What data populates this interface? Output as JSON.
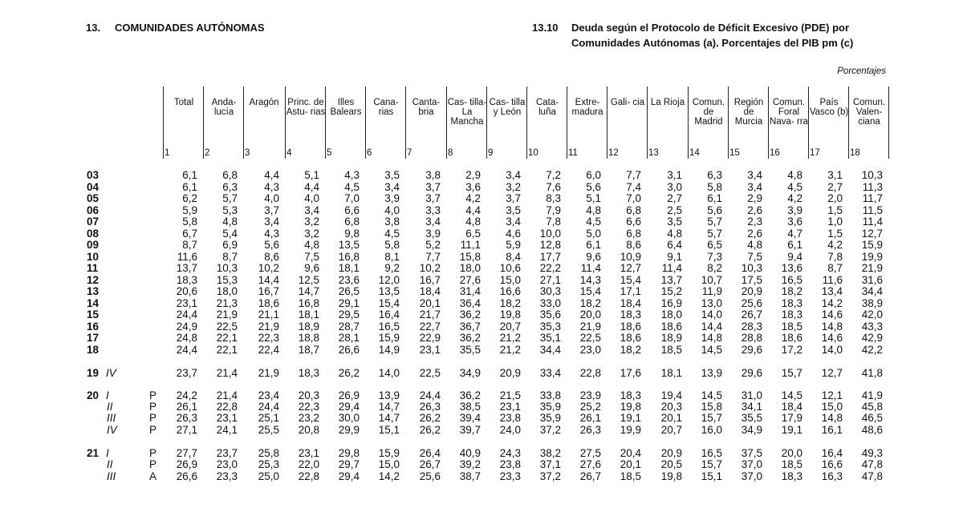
{
  "header": {
    "section_number": "13.",
    "section_title": "COMUNIDADES AUTÓNOMAS",
    "table_number": "13.10",
    "table_title_line1": "Deuda según el Protocolo de Déficit Excesivo (PDE) por",
    "table_title_line2": "Comunidades Autónomas (a). Porcentajes del PIB pm (c)",
    "units": "Porcentajes"
  },
  "columns": [
    {
      "label": "Total",
      "num": "1"
    },
    {
      "label": "Anda- lucía",
      "num": "2"
    },
    {
      "label": "Aragón",
      "num": "3"
    },
    {
      "label": "Princ. de Astu- rias",
      "num": "4"
    },
    {
      "label": "Illes Balears",
      "num": "5"
    },
    {
      "label": "Cana- rias",
      "num": "6"
    },
    {
      "label": "Canta- bria",
      "num": "7"
    },
    {
      "label": "Cas- tilla- La Mancha",
      "num": "8"
    },
    {
      "label": "Cas- tilla y León",
      "num": "9"
    },
    {
      "label": "Cata- luña",
      "num": "10"
    },
    {
      "label": "Extre- madura",
      "num": "11"
    },
    {
      "label": "Gali- cia",
      "num": "12"
    },
    {
      "label": "La Rioja",
      "num": "13"
    },
    {
      "label": "Comun. de Madrid",
      "num": "14"
    },
    {
      "label": "Región de Murcia",
      "num": "15"
    },
    {
      "label": "Comun. Foral Nava- rra",
      "num": "16"
    },
    {
      "label": "País Vasco (b)",
      "num": "17"
    },
    {
      "label": "Comun. Valen- ciana",
      "num": "18"
    }
  ],
  "rows": [
    {
      "year": "03",
      "q": "",
      "flag": "",
      "values": [
        "6,1",
        "6,8",
        "4,4",
        "5,1",
        "4,3",
        "3,5",
        "3,8",
        "2,9",
        "3,4",
        "7,2",
        "6,0",
        "7,7",
        "3,1",
        "6,3",
        "3,4",
        "4,8",
        "3,1",
        "10,3"
      ]
    },
    {
      "year": "04",
      "q": "",
      "flag": "",
      "values": [
        "6,1",
        "6,3",
        "4,3",
        "4,4",
        "4,5",
        "3,4",
        "3,7",
        "3,6",
        "3,2",
        "7,6",
        "5,6",
        "7,4",
        "3,0",
        "5,8",
        "3,4",
        "4,5",
        "2,7",
        "11,3"
      ]
    },
    {
      "year": "05",
      "q": "",
      "flag": "",
      "values": [
        "6,2",
        "5,7",
        "4,0",
        "4,0",
        "7,0",
        "3,9",
        "3,7",
        "4,2",
        "3,7",
        "8,3",
        "5,1",
        "7,0",
        "2,7",
        "6,1",
        "2,9",
        "4,2",
        "2,0",
        "11,7"
      ]
    },
    {
      "year": "06",
      "q": "",
      "flag": "",
      "values": [
        "5,9",
        "5,3",
        "3,7",
        "3,4",
        "6,6",
        "4,0",
        "3,3",
        "4,4",
        "3,5",
        "7,9",
        "4,8",
        "6,8",
        "2,5",
        "5,6",
        "2,6",
        "3,9",
        "1,5",
        "11,5"
      ]
    },
    {
      "year": "07",
      "q": "",
      "flag": "",
      "values": [
        "5,8",
        "4,8",
        "3,4",
        "3,2",
        "6,8",
        "3,8",
        "3,4",
        "4,8",
        "3,4",
        "7,8",
        "4,5",
        "6,6",
        "3,5",
        "5,7",
        "2,3",
        "3,6",
        "1,0",
        "11,4"
      ]
    },
    {
      "year": "08",
      "q": "",
      "flag": "",
      "values": [
        "6,7",
        "5,4",
        "4,3",
        "3,2",
        "9,8",
        "4,5",
        "3,9",
        "6,5",
        "4,6",
        "10,0",
        "5,0",
        "6,8",
        "4,8",
        "5,7",
        "2,6",
        "4,7",
        "1,5",
        "12,7"
      ]
    },
    {
      "year": "09",
      "q": "",
      "flag": "",
      "values": [
        "8,7",
        "6,9",
        "5,6",
        "4,8",
        "13,5",
        "5,8",
        "5,2",
        "11,1",
        "5,9",
        "12,8",
        "6,1",
        "8,6",
        "6,4",
        "6,5",
        "4,8",
        "6,1",
        "4,2",
        "15,9"
      ]
    },
    {
      "year": "10",
      "q": "",
      "flag": "",
      "values": [
        "11,6",
        "8,7",
        "8,6",
        "7,5",
        "16,8",
        "8,1",
        "7,7",
        "15,8",
        "8,4",
        "17,7",
        "9,6",
        "10,9",
        "9,1",
        "7,3",
        "7,5",
        "9,4",
        "7,8",
        "19,9"
      ]
    },
    {
      "year": "11",
      "q": "",
      "flag": "",
      "values": [
        "13,7",
        "10,3",
        "10,2",
        "9,6",
        "18,1",
        "9,2",
        "10,2",
        "18,0",
        "10,6",
        "22,2",
        "11,4",
        "12,7",
        "11,4",
        "8,2",
        "10,3",
        "13,6",
        "8,7",
        "21,9"
      ]
    },
    {
      "year": "12",
      "q": "",
      "flag": "",
      "values": [
        "18,3",
        "15,3",
        "14,4",
        "12,5",
        "23,6",
        "12,0",
        "16,7",
        "27,6",
        "15,0",
        "27,1",
        "14,3",
        "15,4",
        "13,7",
        "10,7",
        "17,5",
        "16,5",
        "11,6",
        "31,6"
      ]
    },
    {
      "year": "13",
      "q": "",
      "flag": "",
      "values": [
        "20,6",
        "18,0",
        "16,7",
        "14,7",
        "26,5",
        "13,5",
        "18,4",
        "31,4",
        "16,6",
        "30,3",
        "15,4",
        "17,1",
        "15,2",
        "11,9",
        "20,9",
        "18,2",
        "13,4",
        "34,4"
      ]
    },
    {
      "year": "14",
      "q": "",
      "flag": "",
      "values": [
        "23,1",
        "21,3",
        "18,6",
        "16,8",
        "29,1",
        "15,4",
        "20,1",
        "36,4",
        "18,2",
        "33,0",
        "18,2",
        "18,4",
        "16,9",
        "13,0",
        "25,6",
        "18,3",
        "14,2",
        "38,9"
      ]
    },
    {
      "year": "15",
      "q": "",
      "flag": "",
      "values": [
        "24,4",
        "21,9",
        "21,1",
        "18,1",
        "29,5",
        "16,4",
        "21,7",
        "36,2",
        "19,8",
        "35,6",
        "20,0",
        "18,3",
        "18,0",
        "14,0",
        "26,7",
        "18,3",
        "14,6",
        "42,0"
      ]
    },
    {
      "year": "16",
      "q": "",
      "flag": "",
      "values": [
        "24,9",
        "22,5",
        "21,9",
        "18,9",
        "28,7",
        "16,5",
        "22,7",
        "36,7",
        "20,7",
        "35,3",
        "21,9",
        "18,6",
        "18,6",
        "14,4",
        "28,3",
        "18,5",
        "14,8",
        "43,3"
      ]
    },
    {
      "year": "17",
      "q": "",
      "flag": "",
      "values": [
        "24,8",
        "22,1",
        "22,3",
        "18,8",
        "28,1",
        "15,9",
        "22,9",
        "36,2",
        "21,2",
        "35,1",
        "22,5",
        "18,6",
        "18,9",
        "14,8",
        "28,8",
        "18,6",
        "14,6",
        "42,9"
      ]
    },
    {
      "year": "18",
      "q": "",
      "flag": "",
      "values": [
        "24,4",
        "22,1",
        "22,4",
        "18,7",
        "26,6",
        "14,9",
        "23,1",
        "35,5",
        "21,2",
        "34,4",
        "23,0",
        "18,2",
        "18,5",
        "14,5",
        "29,6",
        "17,2",
        "14,0",
        "42,2"
      ]
    },
    {
      "year": "19",
      "q": "IV",
      "flag": "",
      "values": [
        "23,7",
        "21,4",
        "21,9",
        "18,3",
        "26,2",
        "14,0",
        "22,5",
        "34,9",
        "20,9",
        "33,4",
        "22,8",
        "17,6",
        "18,1",
        "13,9",
        "29,6",
        "15,7",
        "12,7",
        "41,8"
      ]
    },
    {
      "year": "20",
      "q": "I",
      "flag": "P",
      "values": [
        "24,2",
        "21,4",
        "23,4",
        "20,3",
        "26,9",
        "13,9",
        "24,4",
        "36,2",
        "21,5",
        "33,8",
        "23,9",
        "18,3",
        "19,4",
        "14,5",
        "31,0",
        "14,5",
        "12,1",
        "41,9"
      ]
    },
    {
      "year": "",
      "q": "II",
      "flag": "P",
      "values": [
        "26,1",
        "22,8",
        "24,4",
        "22,3",
        "29,4",
        "14,7",
        "26,3",
        "38,5",
        "23,1",
        "35,9",
        "25,2",
        "19,8",
        "20,3",
        "15,8",
        "34,1",
        "18,4",
        "15,0",
        "45,8"
      ]
    },
    {
      "year": "",
      "q": "III",
      "flag": "P",
      "values": [
        "26,3",
        "23,1",
        "25,1",
        "23,2",
        "30,0",
        "14,7",
        "26,2",
        "39,4",
        "23,8",
        "35,9",
        "26,1",
        "19,1",
        "20,1",
        "15,7",
        "35,5",
        "17,9",
        "14,8",
        "46,5"
      ]
    },
    {
      "year": "",
      "q": "IV",
      "flag": "P",
      "values": [
        "27,1",
        "24,1",
        "25,5",
        "20,8",
        "29,9",
        "15,1",
        "26,2",
        "39,7",
        "24,0",
        "37,2",
        "26,3",
        "19,9",
        "20,7",
        "16,0",
        "34,9",
        "19,1",
        "16,1",
        "48,6"
      ]
    },
    {
      "year": "21",
      "q": "I",
      "flag": "P",
      "values": [
        "27,7",
        "23,7",
        "25,8",
        "23,1",
        "29,8",
        "15,9",
        "26,4",
        "40,9",
        "24,3",
        "38,2",
        "27,5",
        "20,4",
        "20,9",
        "16,5",
        "37,5",
        "20,0",
        "16,4",
        "49,3"
      ]
    },
    {
      "year": "",
      "q": "II",
      "flag": "P",
      "values": [
        "26,9",
        "23,0",
        "25,3",
        "22,0",
        "29,7",
        "15,0",
        "26,7",
        "39,2",
        "23,8",
        "37,1",
        "27,6",
        "20,1",
        "20,5",
        "15,7",
        "37,0",
        "18,5",
        "16,6",
        "47,8"
      ]
    },
    {
      "year": "",
      "q": "III",
      "flag": "A",
      "values": [
        "26,6",
        "23,3",
        "25,0",
        "22,8",
        "29,4",
        "14,2",
        "25,6",
        "38,7",
        "23,3",
        "37,2",
        "26,7",
        "18,5",
        "19,8",
        "15,1",
        "37,0",
        "18,3",
        "16,3",
        "47,8"
      ]
    }
  ]
}
